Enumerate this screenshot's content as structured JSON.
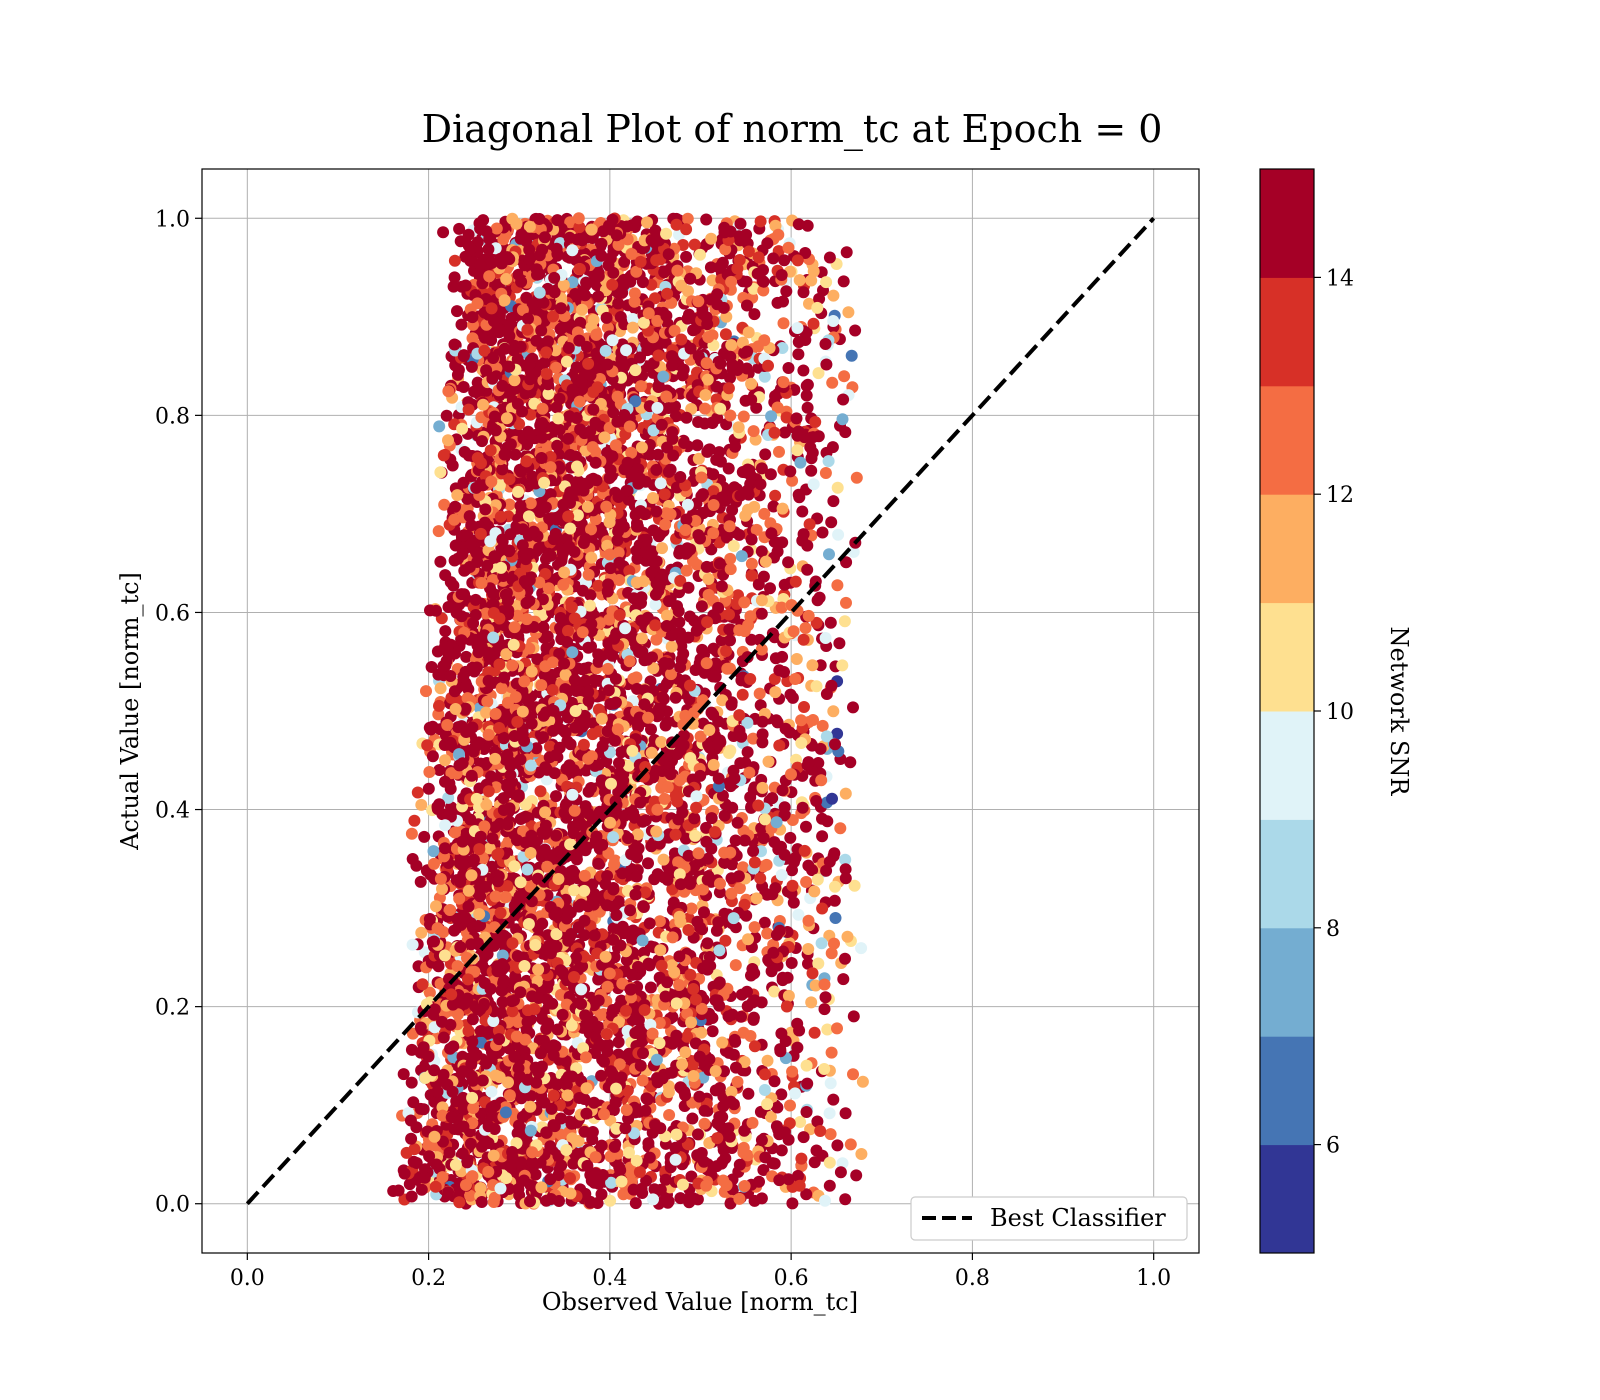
{
  "chart_data": {
    "type": "scatter",
    "title": "Diagonal Plot of norm_tc at Epoch = 0",
    "xlabel": "Observed Value [norm_tc]",
    "ylabel": "Actual Value [norm_tc]",
    "xlim": [
      -0.05,
      1.05
    ],
    "ylim": [
      -0.05,
      1.05
    ],
    "xticks": [
      "0.0",
      "0.2",
      "0.4",
      "0.6",
      "0.8",
      "1.0"
    ],
    "yticks": [
      "0.0",
      "0.2",
      "0.4",
      "0.6",
      "0.8",
      "1.0"
    ],
    "grid": true,
    "scatter_description": "Dense cloud of points; observed values span roughly 0.14–0.68, actual values span 0.0–1.0, colored by Network SNR",
    "observed_range": [
      0.14,
      0.68
    ],
    "actual_range": [
      0.0,
      1.0
    ],
    "series": [
      {
        "name": "Best Classifier",
        "style": "dashed",
        "color": "#000000",
        "x": [
          0.0,
          1.0
        ],
        "y": [
          0.0,
          1.0
        ]
      }
    ],
    "legend": {
      "entries": [
        "Best Classifier"
      ],
      "placement": "lower-right"
    },
    "colorbar": {
      "label": "Network SNR",
      "min": 5,
      "max": 15,
      "ticks": [
        "6",
        "8",
        "10",
        "12",
        "14"
      ],
      "tick_values": [
        6,
        8,
        10,
        12,
        14
      ],
      "colors": [
        "#313695",
        "#4575b4",
        "#74add1",
        "#abd9e9",
        "#e0f3f8",
        "#fee090",
        "#fdae61",
        "#f46d43",
        "#d73027",
        "#a50026"
      ]
    }
  }
}
